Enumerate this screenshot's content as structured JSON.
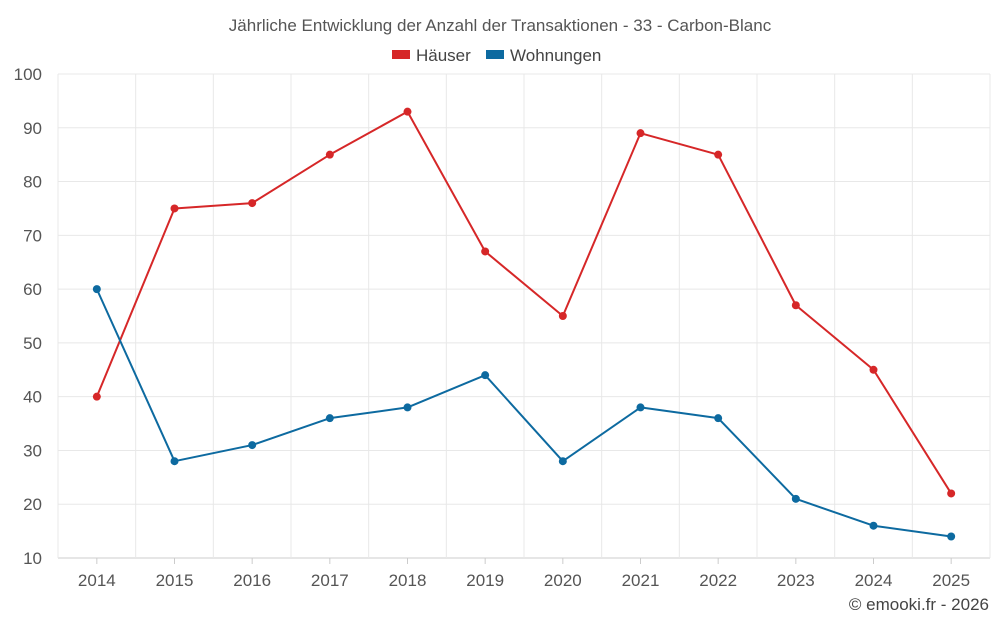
{
  "chart_data": {
    "type": "line",
    "title": "Jährliche Entwicklung der Anzahl der Transaktionen - 33 - Carbon-Blanc",
    "categories": [
      "2014",
      "2015",
      "2016",
      "2017",
      "2018",
      "2019",
      "2020",
      "2021",
      "2022",
      "2023",
      "2024",
      "2025"
    ],
    "series": [
      {
        "name": "Häuser",
        "color": "#d62728",
        "values": [
          40,
          75,
          76,
          85,
          93,
          67,
          55,
          89,
          85,
          57,
          45,
          22
        ]
      },
      {
        "name": "Wohnungen",
        "color": "#0d6aa0",
        "values": [
          60,
          28,
          31,
          36,
          38,
          44,
          28,
          38,
          36,
          21,
          16,
          14
        ]
      }
    ],
    "ylim": [
      10,
      100
    ],
    "yticks": [
      10,
      20,
      30,
      40,
      50,
      60,
      70,
      80,
      90,
      100
    ],
    "grid": true,
    "legend": "top-center",
    "xlabel": "",
    "ylabel": ""
  },
  "credit": "© emooki.fr - 2026"
}
